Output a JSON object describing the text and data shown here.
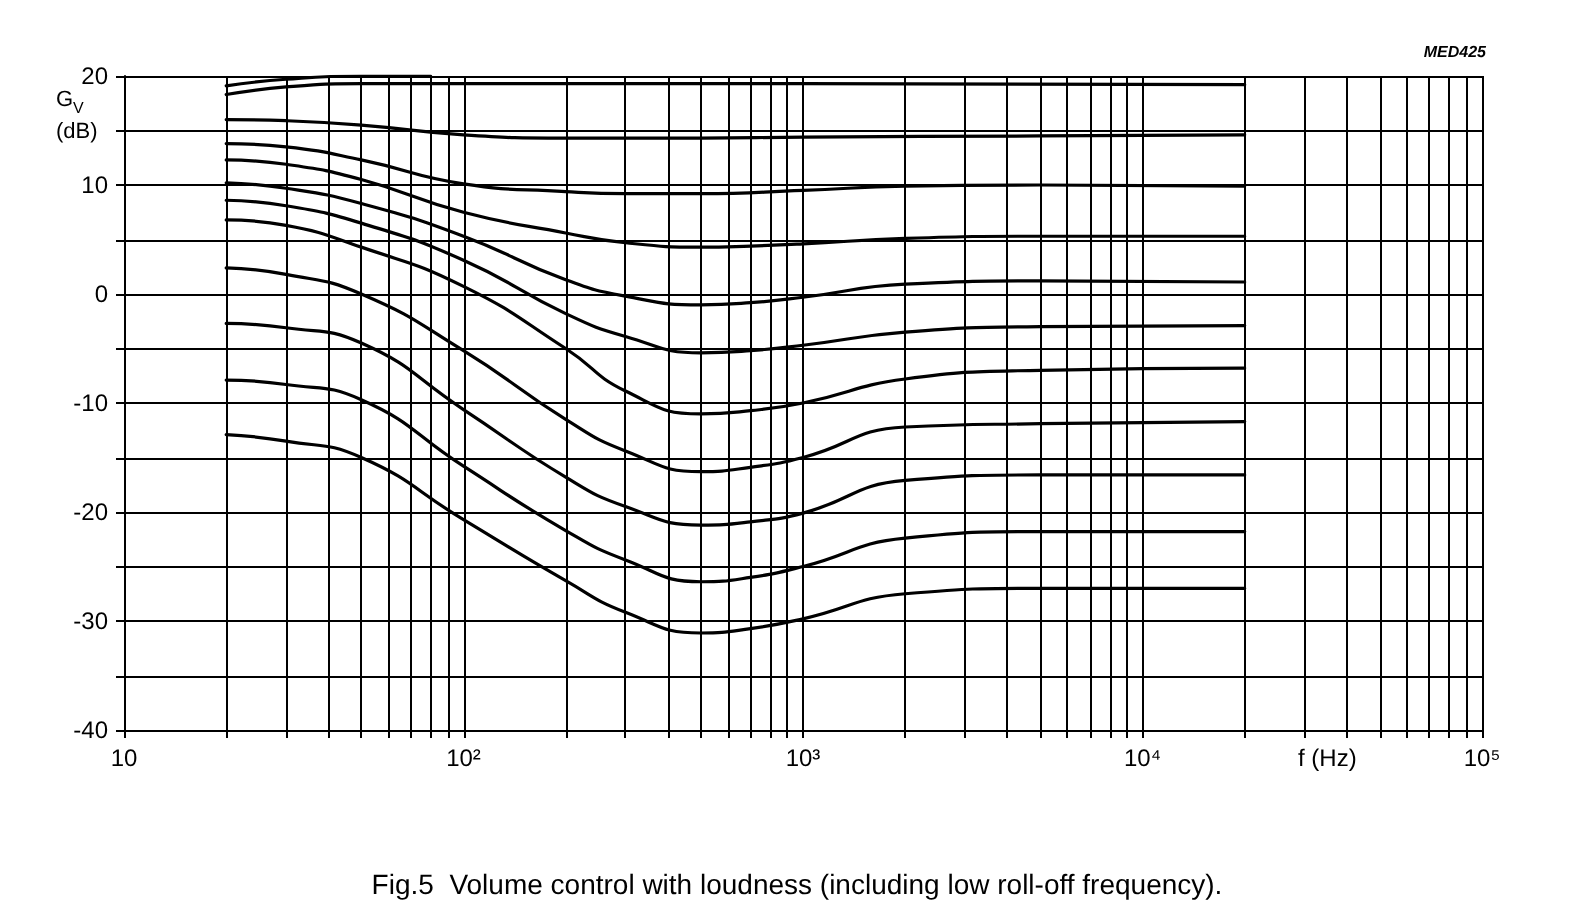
{
  "chart_data": {
    "type": "line",
    "title": "Fig.5  Volume control with loudness (including low roll-off frequency).",
    "xlabel": "f (Hz)",
    "ylabel": "G$_{V}$ (dB)",
    "annotations": [
      "MED425"
    ],
    "log": "x",
    "grid": true,
    "marker": "none",
    "line_style": "solid",
    "xlim": [
      10,
      100000
    ],
    "ylim": [
      -40,
      20
    ],
    "xticks": [
      10,
      {
        "value": 20,
        "label": null
      },
      {
        "value": 30,
        "label": null
      },
      {
        "value": 40,
        "label": null
      },
      {
        "value": 50,
        "label": null
      },
      {
        "value": 60,
        "label": null
      },
      {
        "value": 70,
        "label": null
      },
      {
        "value": 80,
        "label": null
      },
      {
        "value": 90,
        "label": null
      },
      {
        "value": 100,
        "label": "10²"
      },
      {
        "value": 200,
        "label": null
      },
      {
        "value": 300,
        "label": null
      },
      {
        "value": 400,
        "label": null
      },
      {
        "value": 500,
        "label": null
      },
      {
        "value": 600,
        "label": null
      },
      {
        "value": 700,
        "label": null
      },
      {
        "value": 800,
        "label": null
      },
      {
        "value": 900,
        "label": null
      },
      {
        "value": 1000,
        "label": "10³"
      },
      {
        "value": 2000,
        "label": null
      },
      {
        "value": 3000,
        "label": null
      },
      {
        "value": 4000,
        "label": null
      },
      {
        "value": 5000,
        "label": null
      },
      {
        "value": 6000,
        "label": null
      },
      {
        "value": 7000,
        "label": null
      },
      {
        "value": 8000,
        "label": null
      },
      {
        "value": 9000,
        "label": null
      },
      {
        "value": 10000,
        "label": "10⁴"
      },
      {
        "value": 20000,
        "label": null
      },
      {
        "value": 30000,
        "label": null
      },
      {
        "value": 40000,
        "label": null
      },
      {
        "value": 50000,
        "label": null
      },
      {
        "value": 60000,
        "label": null
      },
      {
        "value": 70000,
        "label": null
      },
      {
        "value": 80000,
        "label": null
      },
      {
        "value": 90000,
        "label": null
      },
      {
        "value": 100000,
        "label": "10⁵"
      }
    ],
    "yticks": [
      -40,
      {
        "value": -35,
        "label": null
      },
      -30,
      {
        "value": -25,
        "label": null
      },
      -20,
      {
        "value": -15,
        "label": null
      },
      -10,
      {
        "value": -5,
        "label": null
      },
      0,
      {
        "value": 5,
        "label": null
      },
      10,
      {
        "value": 15,
        "label": null
      },
      20
    ],
    "series": [
      {
        "color": "#000000",
        "x": [
          20,
          30,
          50,
          80
        ],
        "values": [
          19.1,
          19.7,
          20,
          20
        ]
      },
      {
        "color": "#000000",
        "x": [
          20,
          30,
          50,
          100,
          1000,
          20000
        ],
        "values": [
          18.3,
          19,
          19.3,
          19.3,
          19.3,
          19.2
        ]
      },
      {
        "color": "#000000",
        "x": [
          20,
          30,
          50,
          100,
          200,
          500,
          1000,
          5000,
          20000
        ],
        "values": [
          16,
          15.9,
          15.5,
          14.6,
          14.3,
          14.3,
          14.4,
          14.5,
          14.6
        ]
      },
      {
        "color": "#000000",
        "x": [
          20,
          30,
          50,
          100,
          200,
          300,
          500,
          1000,
          2000,
          5000,
          20000
        ],
        "values": [
          13.8,
          13.5,
          12.3,
          10.1,
          9.4,
          9.2,
          9.2,
          9.5,
          9.9,
          10,
          9.9
        ]
      },
      {
        "color": "#000000",
        "x": [
          20,
          30,
          50,
          100,
          200,
          300,
          500,
          700,
          1000,
          2000,
          5000,
          20000
        ],
        "values": [
          12.3,
          11.9,
          10.5,
          7.5,
          5.6,
          4.7,
          4.3,
          4.4,
          4.6,
          5.1,
          5.3,
          5.3
        ]
      },
      {
        "color": "#000000",
        "x": [
          20,
          30,
          50,
          100,
          200,
          300,
          500,
          700,
          1000,
          2000,
          5000,
          20000
        ],
        "values": [
          10.2,
          9.7,
          8.3,
          5.3,
          1.3,
          -0.2,
          -1,
          -0.8,
          -0.3,
          0.9,
          1.2,
          1.1
        ]
      },
      {
        "color": "#000000",
        "x": [
          20,
          30,
          50,
          100,
          200,
          300,
          500,
          700,
          1000,
          2000,
          5000,
          20000
        ],
        "values": [
          8.6,
          8.1,
          6.5,
          3.1,
          -1.8,
          -3.9,
          -5.4,
          -5.2,
          -4.7,
          -3.5,
          -3,
          -2.9
        ]
      },
      {
        "color": "#000000",
        "x": [
          20,
          30,
          50,
          100,
          200,
          300,
          500,
          700,
          1000,
          2000,
          5000,
          20000
        ],
        "values": [
          6.8,
          6.3,
          4.3,
          0.7,
          -5,
          -8.9,
          -11,
          -10.7,
          -10,
          -7.8,
          -7,
          -6.8
        ]
      },
      {
        "color": "#000000",
        "x": [
          20,
          30,
          50,
          100,
          200,
          300,
          500,
          700,
          1000,
          2000,
          5000,
          20000
        ],
        "values": [
          2.4,
          1.8,
          0,
          -5.2,
          -11.5,
          -14.4,
          -16.3,
          -15.9,
          -15,
          -12.2,
          -11.9,
          -11.7
        ]
      },
      {
        "color": "#000000",
        "x": [
          20,
          30,
          50,
          100,
          200,
          300,
          500,
          700,
          1000,
          2000,
          5000,
          20000
        ],
        "values": [
          -2.7,
          -3.1,
          -4.5,
          -10.6,
          -16.8,
          -19.5,
          -21.2,
          -20.9,
          -20.1,
          -17.1,
          -16.6,
          -16.6
        ]
      },
      {
        "color": "#000000",
        "x": [
          20,
          30,
          50,
          100,
          200,
          300,
          500,
          700,
          1000,
          2000,
          5000,
          20000
        ],
        "values": [
          -7.9,
          -8.3,
          -9.7,
          -15.8,
          -21.7,
          -24.4,
          -26.4,
          -26,
          -25,
          -22.4,
          -21.8,
          -21.8
        ]
      },
      {
        "color": "#000000",
        "x": [
          20,
          30,
          50,
          100,
          200,
          300,
          500,
          700,
          1000,
          2000,
          5000,
          20000
        ],
        "values": [
          -12.9,
          -13.5,
          -15,
          -20.7,
          -26.3,
          -29.2,
          -31.1,
          -30.7,
          -29.8,
          -27.5,
          -27,
          -27
        ]
      }
    ]
  }
}
